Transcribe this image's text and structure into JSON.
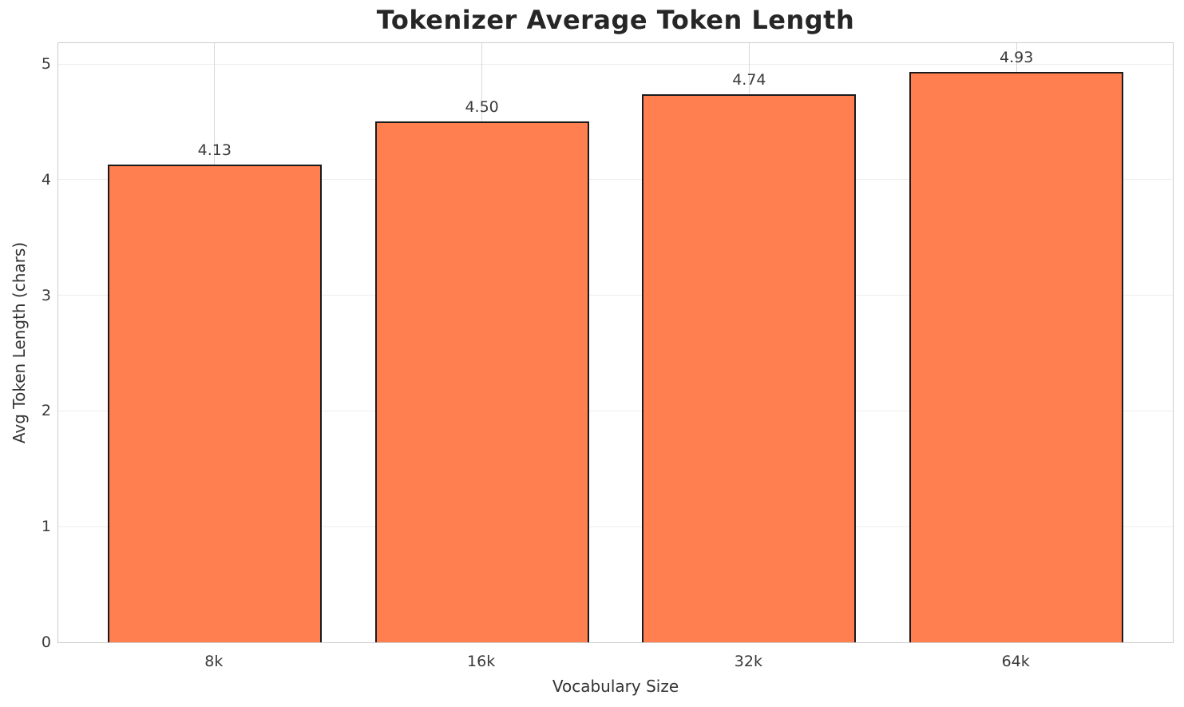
{
  "chart_data": {
    "type": "bar",
    "title": "Tokenizer Average Token Length",
    "xlabel": "Vocabulary Size",
    "ylabel": "Avg Token Length (chars)",
    "categories": [
      "8k",
      "16k",
      "32k",
      "64k"
    ],
    "values": [
      4.13,
      4.5,
      4.74,
      4.93
    ],
    "value_labels": [
      "4.13",
      "4.50",
      "4.74",
      "4.93"
    ],
    "yticks": [
      "0",
      "1",
      "2",
      "3",
      "4",
      "5"
    ],
    "ytick_values": [
      0,
      1,
      2,
      3,
      4,
      5
    ],
    "ylim": [
      0,
      5.18
    ],
    "grid": "both",
    "legend_position": "none",
    "colors": {
      "bar_fill": "#FF7F50",
      "bar_edge": "#1a1a1a",
      "grid_horizontal": "#ededed",
      "grid_vertical": "#d9d9d9",
      "spine": "#cccccc",
      "title_text": "#262626",
      "tick_text": "#3a3a3a",
      "background": "#ffffff"
    }
  }
}
